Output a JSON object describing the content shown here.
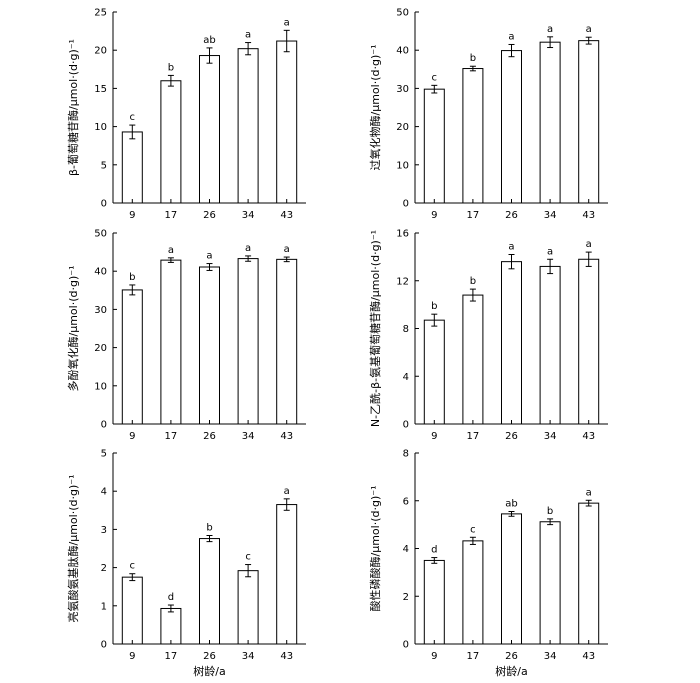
{
  "chart_data": [
    {
      "type": "bar",
      "ylabel": "β-葡萄糖苷酶/μmol·(d·g)⁻¹",
      "categories": [
        "9",
        "17",
        "26",
        "34",
        "43"
      ],
      "values": [
        9.3,
        16.0,
        19.3,
        20.2,
        21.2
      ],
      "errors": [
        0.9,
        0.7,
        1.0,
        0.8,
        1.4
      ],
      "letters": [
        "c",
        "b",
        "ab",
        "a",
        "a"
      ],
      "ylim": [
        0,
        25
      ],
      "yticks": [
        0,
        5,
        10,
        15,
        20,
        25
      ],
      "xlabel": ""
    },
    {
      "type": "bar",
      "ylabel": "过氧化物酶/μmol·(d·g)⁻¹",
      "categories": [
        "9",
        "17",
        "26",
        "34",
        "43"
      ],
      "values": [
        29.8,
        35.2,
        39.9,
        42.1,
        42.5
      ],
      "errors": [
        1.0,
        0.6,
        1.6,
        1.4,
        0.9
      ],
      "letters": [
        "c",
        "b",
        "a",
        "a",
        "a"
      ],
      "ylim": [
        0,
        50
      ],
      "yticks": [
        0,
        10,
        20,
        30,
        40,
        50
      ],
      "xlabel": ""
    },
    {
      "type": "bar",
      "ylabel": "多酚氧化酶/μmol·(d·g)⁻¹",
      "categories": [
        "9",
        "17",
        "26",
        "34",
        "43"
      ],
      "values": [
        35.1,
        42.9,
        41.1,
        43.3,
        43.1
      ],
      "errors": [
        1.3,
        0.6,
        0.9,
        0.7,
        0.6
      ],
      "letters": [
        "b",
        "a",
        "a",
        "a",
        "a"
      ],
      "ylim": [
        0,
        50
      ],
      "yticks": [
        0,
        10,
        20,
        30,
        40,
        50
      ],
      "xlabel": ""
    },
    {
      "type": "bar",
      "ylabel": "N-乙酰-β-氨基葡萄糖苷酶/μmol·(d·g)⁻¹",
      "categories": [
        "9",
        "17",
        "26",
        "34",
        "43"
      ],
      "values": [
        8.7,
        10.8,
        13.6,
        13.2,
        13.8
      ],
      "errors": [
        0.5,
        0.5,
        0.6,
        0.6,
        0.6
      ],
      "letters": [
        "b",
        "b",
        "a",
        "a",
        "a"
      ],
      "ylim": [
        0,
        16
      ],
      "yticks": [
        0,
        4,
        8,
        12,
        16
      ],
      "xlabel": ""
    },
    {
      "type": "bar",
      "ylabel": "亮氨酸氨基肽酶/μmol·(d·g)⁻¹",
      "categories": [
        "9",
        "17",
        "26",
        "34",
        "43"
      ],
      "values": [
        1.75,
        0.93,
        2.76,
        1.92,
        3.65
      ],
      "errors": [
        0.09,
        0.09,
        0.08,
        0.16,
        0.15
      ],
      "letters": [
        "c",
        "d",
        "b",
        "c",
        "a"
      ],
      "ylim": [
        0,
        5
      ],
      "yticks": [
        0,
        1,
        2,
        3,
        4,
        5
      ],
      "xlabel": "树龄/a"
    },
    {
      "type": "bar",
      "ylabel": "酸性磷酸酶/μmol·(d·g)⁻¹",
      "categories": [
        "9",
        "17",
        "26",
        "34",
        "43"
      ],
      "values": [
        3.5,
        4.32,
        5.45,
        5.12,
        5.9
      ],
      "errors": [
        0.12,
        0.15,
        0.1,
        0.12,
        0.12
      ],
      "letters": [
        "d",
        "c",
        "ab",
        "b",
        "a"
      ],
      "ylim": [
        0,
        8
      ],
      "yticks": [
        0,
        2,
        4,
        6,
        8
      ],
      "xlabel": "树龄/a"
    }
  ]
}
